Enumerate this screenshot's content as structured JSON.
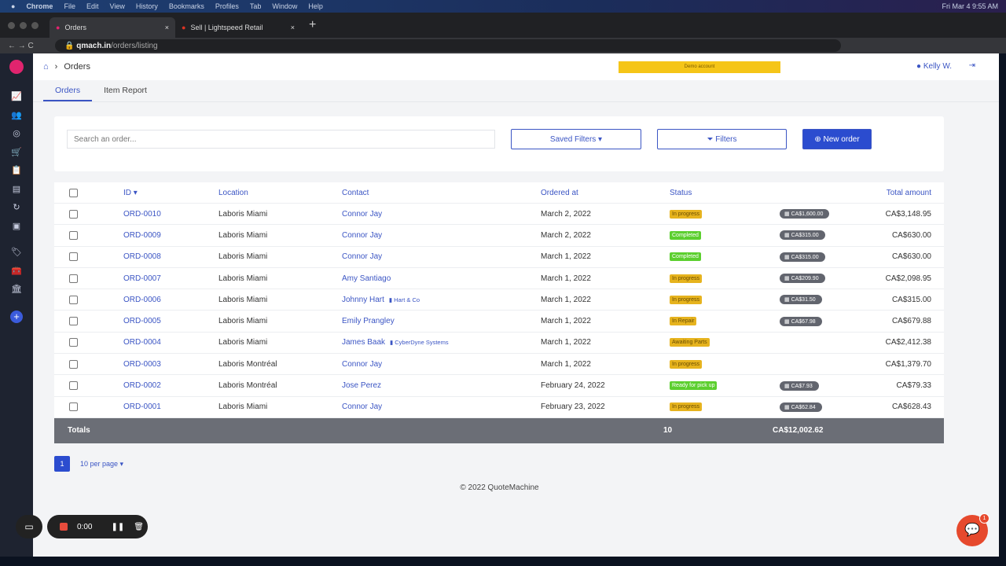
{
  "os": {
    "menu": [
      "Chrome",
      "File",
      "Edit",
      "View",
      "History",
      "Bookmarks",
      "Profiles",
      "Tab",
      "Window",
      "Help"
    ],
    "clock": "Fri Mar 4  9:55 AM"
  },
  "browser": {
    "tabs": [
      {
        "title": "Orders"
      },
      {
        "title": "Sell | Lightspeed Retail"
      }
    ],
    "url_host": "qmach.in",
    "url_path": "/orders/listing"
  },
  "header": {
    "breadcrumb": "Orders",
    "demo": "Demo account",
    "user": "Kelly W."
  },
  "tabs": [
    "Orders",
    "Item Report"
  ],
  "toolbar": {
    "search_placeholder": "Search an order...",
    "saved_filters": "Saved Filters ▾",
    "filters": "Filters",
    "new_order": "New order"
  },
  "table": {
    "headers": [
      "ID ▾",
      "Location",
      "Contact",
      "Ordered at",
      "Status",
      "Total amount"
    ],
    "rows": [
      {
        "id": "ORD-0010",
        "location": "Laboris Miami",
        "contact": "Connor Jay",
        "company": "",
        "date": "March 2, 2022",
        "status": "In progress",
        "sc": "y",
        "deposit": "CA$1,600.00",
        "total": "CA$3,148.95"
      },
      {
        "id": "ORD-0009",
        "location": "Laboris Miami",
        "contact": "Connor Jay",
        "company": "",
        "date": "March 2, 2022",
        "status": "Completed",
        "sc": "g",
        "deposit": "CA$315.00",
        "total": "CA$630.00"
      },
      {
        "id": "ORD-0008",
        "location": "Laboris Miami",
        "contact": "Connor Jay",
        "company": "",
        "date": "March 1, 2022",
        "status": "Completed",
        "sc": "g",
        "deposit": "CA$315.00",
        "total": "CA$630.00"
      },
      {
        "id": "ORD-0007",
        "location": "Laboris Miami",
        "contact": "Amy Santiago",
        "company": "",
        "date": "March 1, 2022",
        "status": "In progress",
        "sc": "y",
        "deposit": "CA$209.90",
        "total": "CA$2,098.95"
      },
      {
        "id": "ORD-0006",
        "location": "Laboris Miami",
        "contact": "Johnny Hart",
        "company": "Hart & Co",
        "date": "March 1, 2022",
        "status": "In progress",
        "sc": "y",
        "deposit": "CA$31.50",
        "total": "CA$315.00"
      },
      {
        "id": "ORD-0005",
        "location": "Laboris Miami",
        "contact": "Emily Prangley",
        "company": "",
        "date": "March 1, 2022",
        "status": "In Repair",
        "sc": "y",
        "deposit": "CA$67.98",
        "total": "CA$679.88"
      },
      {
        "id": "ORD-0004",
        "location": "Laboris Miami",
        "contact": "James Baak",
        "company": "CyberDyne Systems",
        "date": "March 1, 2022",
        "status": "Awaiting Parts",
        "sc": "y",
        "deposit": "",
        "total": "CA$2,412.38"
      },
      {
        "id": "ORD-0003",
        "location": "Laboris Montréal",
        "contact": "Connor Jay",
        "company": "",
        "date": "March 1, 2022",
        "status": "In progress",
        "sc": "y",
        "deposit": "",
        "total": "CA$1,379.70"
      },
      {
        "id": "ORD-0002",
        "location": "Laboris Montréal",
        "contact": "Jose Perez",
        "company": "",
        "date": "February 24, 2022",
        "status": "Ready for pick up",
        "sc": "g",
        "deposit": "CA$7.93",
        "total": "CA$79.33"
      },
      {
        "id": "ORD-0001",
        "location": "Laboris Miami",
        "contact": "Connor Jay",
        "company": "",
        "date": "February 23, 2022",
        "status": "In progress",
        "sc": "y",
        "deposit": "CA$62.84",
        "total": "CA$628.43"
      }
    ],
    "totals": {
      "label": "Totals",
      "count": "10",
      "amount": "CA$12,002.62"
    }
  },
  "pager": {
    "page": "1",
    "per_page": "10 per page ▾"
  },
  "footer": "© 2022 QuoteMachine",
  "recorder": {
    "time": "0:00"
  },
  "chat": {
    "badge": "1"
  }
}
